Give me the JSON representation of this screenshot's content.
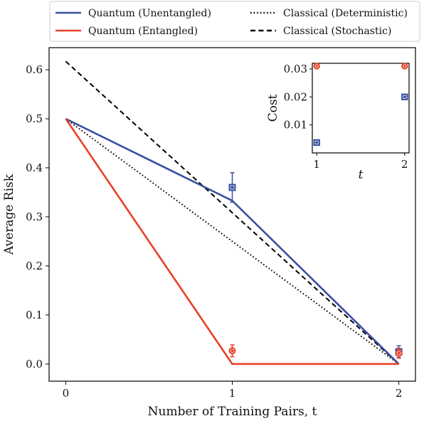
{
  "chart_data": [
    {
      "type": "line",
      "xlabel": "Number of Training Pairs, t",
      "ylabel": "Average Risk",
      "xlim": [
        -0.1,
        2.1
      ],
      "ylim": [
        -0.035,
        0.645
      ],
      "xticks": [
        0,
        1,
        2
      ],
      "xtick_labels": [
        "0",
        "1",
        "2"
      ],
      "yticks": [
        0.0,
        0.1,
        0.2,
        0.3,
        0.4,
        0.5,
        0.6
      ],
      "ytick_labels": [
        "0.0",
        "0.1",
        "0.2",
        "0.3",
        "0.4",
        "0.5",
        "0.6"
      ],
      "legend_position": "top (outside, above plot)",
      "grid": false,
      "series": [
        {
          "name": "Quantum (Unentangled)",
          "color": "#3b4fa0",
          "style": "solid",
          "x": [
            0,
            1,
            2
          ],
          "y": [
            0.5,
            0.333,
            0.0
          ],
          "markers": {
            "shape": "square",
            "points": [
              {
                "x": 1,
                "y": 0.36,
                "err": 0.03
              },
              {
                "x": 2,
                "y": 0.025,
                "err": 0.012
              }
            ]
          }
        },
        {
          "name": "Quantum (Entangled)",
          "color": "#e8402a",
          "style": "solid",
          "x": [
            0,
            1,
            2
          ],
          "y": [
            0.5,
            0.0,
            0.0
          ],
          "markers": {
            "shape": "circle",
            "points": [
              {
                "x": 1,
                "y": 0.027,
                "err": 0.012
              },
              {
                "x": 2,
                "y": 0.022,
                "err": 0.01
              }
            ]
          }
        },
        {
          "name": "Classical (Deterministic)",
          "color": "#000000",
          "style": "dotted",
          "x": [
            0,
            1,
            2
          ],
          "y": [
            0.5,
            0.25,
            0.0
          ]
        },
        {
          "name": "Classical (Stochastic)",
          "color": "#000000",
          "style": "dashed",
          "x": [
            0,
            1,
            2
          ],
          "y": [
            0.617,
            0.3085,
            0.0
          ]
        }
      ]
    },
    {
      "type": "scatter",
      "inset": true,
      "xlabel": "t",
      "ylabel": "Cost",
      "xlim": [
        0.95,
        2.05
      ],
      "ylim": [
        0.0,
        0.032
      ],
      "xticks": [
        1,
        2
      ],
      "xtick_labels": [
        "1",
        "2"
      ],
      "yticks": [
        0.01,
        0.02,
        0.03
      ],
      "ytick_labels": [
        "0.01",
        "0.02",
        "0.03"
      ],
      "series": [
        {
          "name": "Quantum (Unentangled)",
          "color": "#3b4fa0",
          "marker": "square",
          "x": [
            1,
            2
          ],
          "y": [
            0.0037,
            0.02
          ]
        },
        {
          "name": "Quantum (Entangled)",
          "color": "#e8402a",
          "marker": "circle",
          "x": [
            1,
            2
          ],
          "y": [
            0.031,
            0.031
          ]
        }
      ]
    }
  ]
}
